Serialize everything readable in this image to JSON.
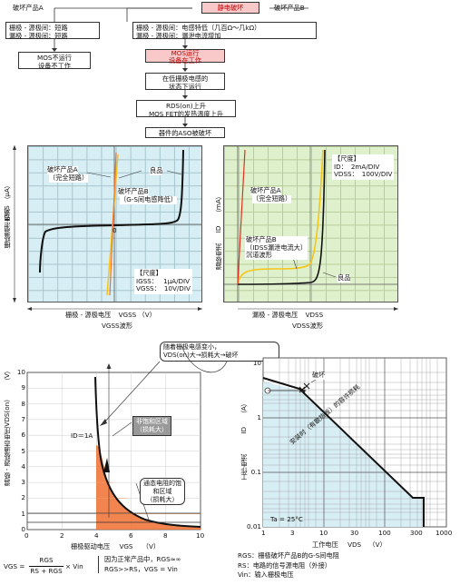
{
  "flow": {
    "title": "静电破坏",
    "productA": "破坏产品A",
    "productB": "破坏产品B",
    "a_line1": "栅极 - 源极间：短路",
    "a_line2": "漏极 - 源极间：短路",
    "b_line1": "栅极 - 源极间：电感特低（几百Ω～几kΩ）",
    "b_line2": "漏极 - 源极间：漏泄电流增加",
    "a_result1": "MOS不运行",
    "a_result2": "设备不工作",
    "b_step1a": "MOS运行",
    "b_step1b": "设备在工作",
    "b_step2a": "在低栅极电感的",
    "b_step2b": "状态下运行",
    "b_step3a": "RDS(on)上升",
    "b_step3b": "MOS FET的发热温度上升",
    "b_step4": "器件的ASO被破坏"
  },
  "igss_chart": {
    "ylabel_main": "栅极漏泄电流",
    "ylabel_sym": "IGSS",
    "yunit": "（μA）",
    "label_a1": "破坏产品A",
    "label_a2": "（完全短路）",
    "label_good": "良品",
    "label_b1": "破坏产品B",
    "label_b2": "（G-S间电感降低）",
    "origin": "0",
    "scale_title": "【尺度】",
    "scale_1_sym": "IGSS：",
    "scale_1_val": "1μA/DIV",
    "scale_2_sym": "VGSS：",
    "scale_2_val": "10V/DIV",
    "xlabel": "栅极 - 源极电压",
    "xsym": "VGSS",
    "xunit": "（V）",
    "caption": "VGSS波形"
  },
  "id_chart": {
    "ylabel_main": "漏极电流",
    "ylabel_sym": "ID",
    "yunit": "（mA）",
    "scale_title": "【尺度】",
    "scale_1_sym": "ID：",
    "scale_1_val": "2mA/DIV",
    "scale_2_sym": "VDSS：",
    "scale_2_val": "100V/DIV",
    "label_a1": "破坏产品A",
    "label_a2": "（完全短路）",
    "label_b1": "破坏产品B",
    "label_b2": "（IDSS漏泄电流大）",
    "label_b3": "沉道波形",
    "label_good": "良品",
    "xlabel": "漏极 - 源极电压",
    "xsym": "VDSS",
    "caption": "VDSS波形"
  },
  "callout": {
    "line1": "随着栅极电感变小，",
    "line2": "VDS(on)大→损耗大→破坏"
  },
  "vds_chart": {
    "ylabel_main": "漏极 - 源极通态电压",
    "ylabel_sym": "VDS(on)",
    "yunit": "（V）",
    "xlabel": "栅极驱动电压",
    "xsym": "VGS",
    "xunit": "（V）",
    "id_label": "ID＝1A",
    "sat_label1": "非饱和区域",
    "sat_label2": "（损耗大）",
    "on_label1": "通态电阻的饱",
    "on_label2": "和区域",
    "on_label3": "（损耗大）",
    "yticks": [
      "10",
      "9",
      "8",
      "7",
      "6",
      "5",
      "4",
      "3",
      "2",
      "1",
      "0"
    ],
    "xticks": [
      "0",
      "2",
      "4",
      "6",
      "8",
      "10"
    ]
  },
  "aso_chart": {
    "ylabel_main": "工作电流",
    "ylabel_sym": "ID",
    "yunit": "（A）",
    "yticks": [
      "10",
      "1",
      "0.1",
      "0.01"
    ],
    "xticks": [
      "1",
      "3",
      "10",
      "30",
      "100",
      "300",
      "1000"
    ],
    "xlabel": "工作电压",
    "xsym": "VDS",
    "xunit": "（V）",
    "break_label": "破坏",
    "aso_label": "安装时（有散热板）的容许损耗",
    "ta_label": "Ta = 25°C"
  },
  "formula": {
    "lhs": "VGS",
    "num": "RGS",
    "den": "RS + RGS",
    "rhs": "× Vin",
    "note1": "因为正常产品中，RGS≈∞",
    "note2": "RGS>>RS，VGS = Vin"
  },
  "legend": {
    "l1": "RGS：栅极破坏产品B的G-S间电阻",
    "l2": "RS：电路的信号源电阻（外接）",
    "l3": "Vin：输入栅极电压"
  },
  "colors": {
    "orange": "#f07030",
    "yellow": "#f5c518",
    "red": "#e03020",
    "blue_fill": "#d8eef5",
    "green_fill": "#dff0cc",
    "pink": "#f9c9c9"
  }
}
